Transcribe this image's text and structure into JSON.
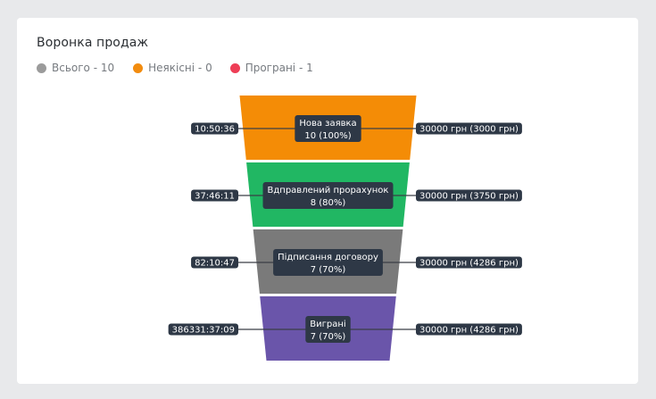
{
  "title": "Воронка продаж",
  "legend": [
    {
      "label": "Всього - 10",
      "color": "#9b9b9b"
    },
    {
      "label": "Неякісні - 0",
      "color": "#f28c0f"
    },
    {
      "label": "Програні - 1",
      "color": "#ee3e56"
    }
  ],
  "chart_data": {
    "type": "funnel",
    "stages": [
      {
        "name": "Нова заявка",
        "count_label": "10 (100%)",
        "count": 10,
        "percent": 100,
        "time": "10:50:36",
        "amount": "30000 грн (3000 грн)",
        "color": "#f48c06"
      },
      {
        "name": "Вдправлений прорахунок",
        "count_label": "8 (80%)",
        "count": 8,
        "percent": 80,
        "time": "37:46:11",
        "amount": "30000 грн (3750 грн)",
        "color": "#21b763"
      },
      {
        "name": "Підписання договору",
        "count_label": "7 (70%)",
        "count": 7,
        "percent": 70,
        "time": "82:10:47",
        "amount": "30000 грн (4286 грн)",
        "color": "#7a7a7a"
      },
      {
        "name": "Виграні",
        "count_label": "7 (70%)",
        "count": 7,
        "percent": 70,
        "time": "386331:37:09",
        "amount": "30000 грн (4286 грн)",
        "color": "#6a55aa"
      }
    ]
  }
}
